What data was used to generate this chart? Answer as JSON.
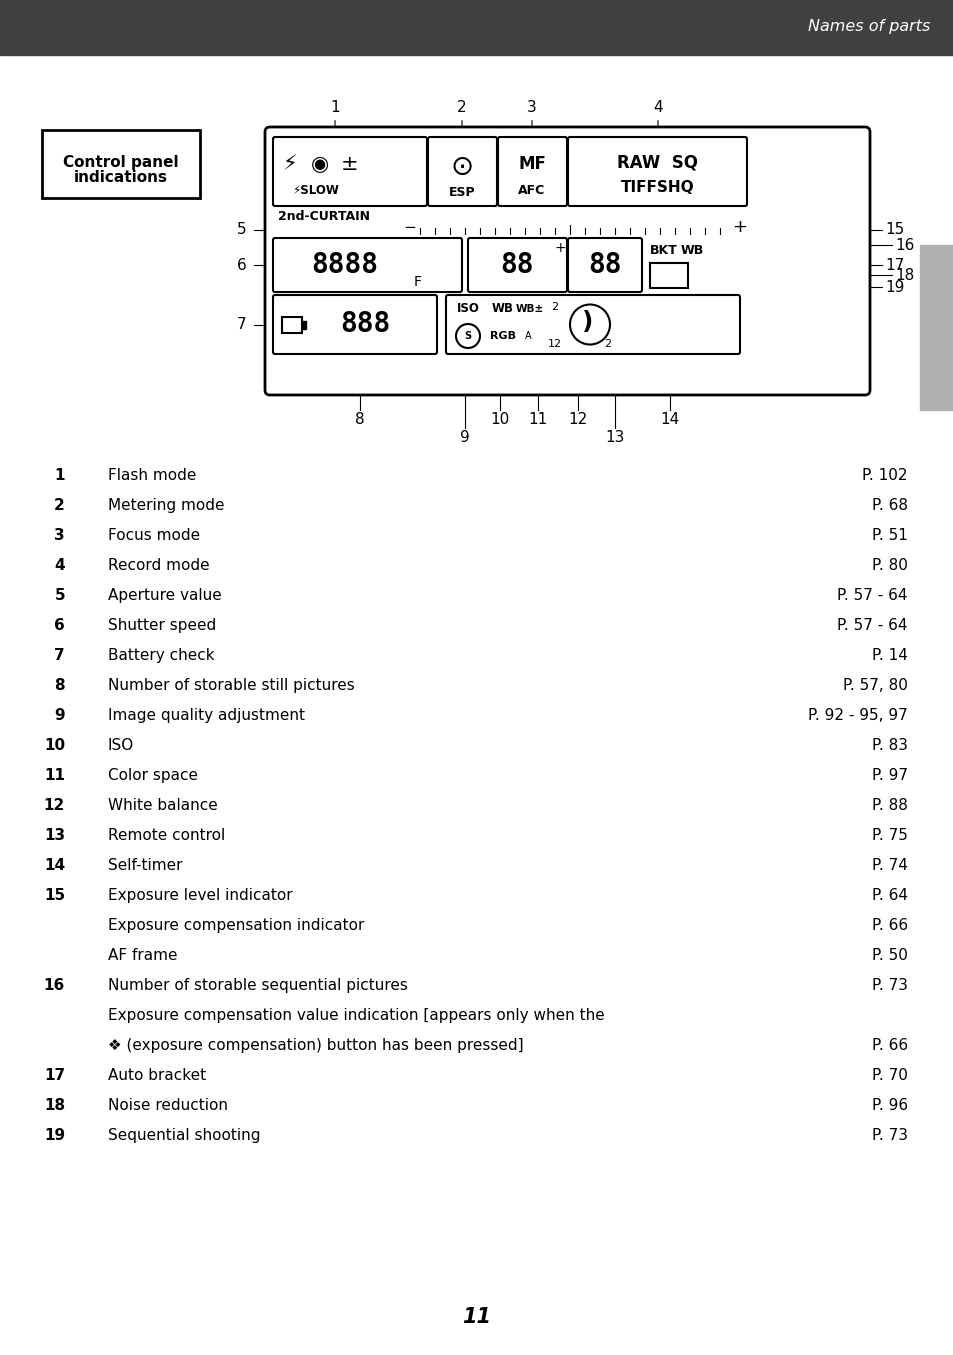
{
  "page_bg": "#ffffff",
  "header_bg": "#404040",
  "header_text": "Names of parts",
  "header_text_color": "#ffffff",
  "title_box_text": "Control panel\nindications",
  "title_box_border": "#000000",
  "title_box_bg": "#ffffff",
  "page_number": "11",
  "right_tab_bg": "#aaaaaa",
  "entries": [
    {
      "num": "1",
      "label": "Flash mode",
      "dots": true,
      "page": "P. 102"
    },
    {
      "num": "2",
      "label": "Metering mode",
      "dots": true,
      "page": "P. 68"
    },
    {
      "num": "3",
      "label": "Focus mode",
      "dots": true,
      "page": "P. 51"
    },
    {
      "num": "4",
      "label": "Record mode",
      "dots": true,
      "page": "P. 80"
    },
    {
      "num": "5",
      "label": "Aperture value",
      "dots": true,
      "page": "P. 57 - 64"
    },
    {
      "num": "6",
      "label": "Shutter speed",
      "dots": true,
      "page": "P. 57 - 64"
    },
    {
      "num": "7",
      "label": "Battery check",
      "dots": true,
      "page": "P. 14"
    },
    {
      "num": "8",
      "label": "Number of storable still pictures",
      "dots": true,
      "page": "P. 57, 80"
    },
    {
      "num": "9",
      "label": "Image quality adjustment",
      "dots": true,
      "page": "P. 92 - 95, 97"
    },
    {
      "num": "10",
      "label": "ISO",
      "dots": true,
      "page": "P. 83"
    },
    {
      "num": "11",
      "label": "Color space",
      "dots": true,
      "page": "P. 97"
    },
    {
      "num": "12",
      "label": "White balance",
      "dots": true,
      "page": "P. 88"
    },
    {
      "num": "13",
      "label": "Remote control",
      "dots": true,
      "page": "P. 75"
    },
    {
      "num": "14",
      "label": "Self-timer",
      "dots": true,
      "page": "P. 74"
    },
    {
      "num": "15",
      "label": "Exposure level indicator",
      "dots": true,
      "page": "P. 64",
      "sub": [
        {
          "label": "Exposure compensation indicator",
          "dots": true,
          "page": "P. 66"
        },
        {
          "label": "AF frame",
          "dots": true,
          "page": "P. 50"
        }
      ]
    },
    {
      "num": "16",
      "label": "Number of storable sequential pictures",
      "dots": true,
      "page": "P. 73",
      "sub": [
        {
          "label": "Exposure compensation value indication [appears only when the",
          "dots": false,
          "page": ""
        },
        {
          "label": "❖ (exposure compensation) button has been pressed]",
          "dots": true,
          "page": "P. 66"
        }
      ]
    },
    {
      "num": "17",
      "label": "Auto bracket",
      "dots": true,
      "page": "P. 70"
    },
    {
      "num": "18",
      "label": "Noise reduction",
      "dots": true,
      "page": "P. 96"
    },
    {
      "num": "19",
      "label": "Sequential shooting",
      "dots": true,
      "page": "P. 73"
    }
  ]
}
